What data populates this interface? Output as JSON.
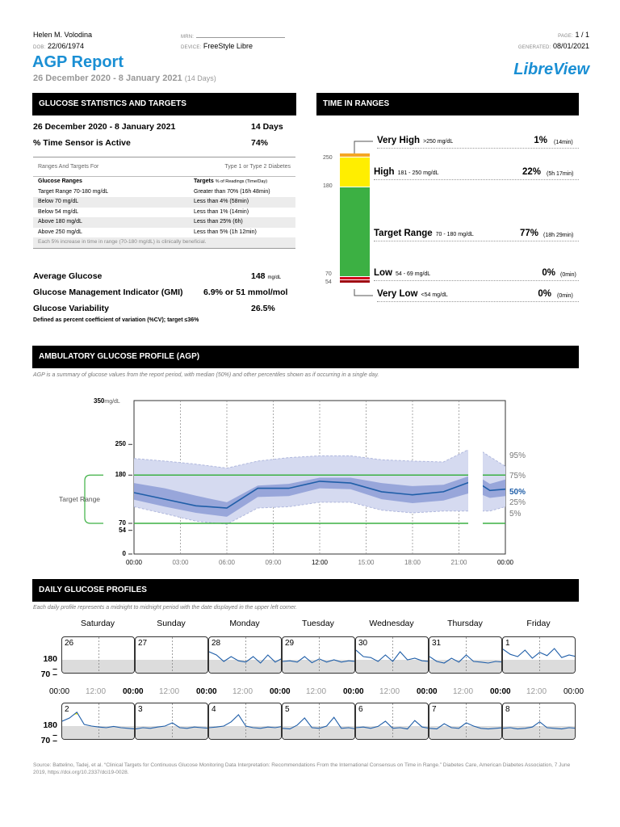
{
  "patient": {
    "name": "Helen M. Volodina",
    "dob_label": "DOB:",
    "dob": "22/06/1974",
    "mrn_label": "MRN:",
    "device_label": "DEVICE:",
    "device": "FreeStyle Libre",
    "page_label": "PAGE:",
    "page": "1 / 1",
    "generated_label": "GENERATED:",
    "generated": "08/01/2021"
  },
  "report": {
    "title": "AGP Report",
    "date_range": "26 December 2020 - 8 January 2021",
    "days": "(14 Days)",
    "brand": "LibreView"
  },
  "stats": {
    "header": "GLUCOSE STATISTICS AND TARGETS",
    "range_label": "26 December 2020 - 8 January 2021",
    "range_value": "14 Days",
    "active_label": "% Time Sensor is Active",
    "active_value": "74%",
    "targets_for_label": "Ranges And Targets For",
    "targets_for_value": "Type 1 or Type 2 Diabetes",
    "col1_header": "Glucose Ranges",
    "col2_header": "Targets",
    "col2_sub": "% of Readings (Time/Day)",
    "rows": [
      {
        "range": "Target Range 70-180 mg/dL",
        "target": "Greater than 70% (16h 48min)"
      },
      {
        "range": "Below 70 mg/dL",
        "target": "Less than 4% (58min)"
      },
      {
        "range": "Below 54 mg/dL",
        "target": "Less than 1% (14min)"
      },
      {
        "range": "Above 180 mg/dL",
        "target": "Less than 25% (6h)"
      },
      {
        "range": "Above 250 mg/dL",
        "target": "Less than 5% (1h 12min)"
      }
    ],
    "note": "Each 5% increase in time in range (70-180 mg/dL) is clinically beneficial.",
    "avg_label": "Average Glucose",
    "avg_value": "148",
    "avg_unit": "mg/dL",
    "gmi_label": "Glucose Management Indicator (GMI)",
    "gmi_value": "6.9% or 51 mmol/mol",
    "var_label": "Glucose Variability",
    "var_value": "26.5%",
    "var_def": "Defined as percent coefficient of variation (%CV); target ≤36%"
  },
  "tir": {
    "header": "TIME IN RANGES",
    "axis_ticks": [
      "250",
      "180",
      "70",
      "54"
    ],
    "bar_colors": {
      "very_high": "#f5a623",
      "high": "#ffee00",
      "target": "#3cb043",
      "low": "#d0021b",
      "very_low": "#8b0000"
    },
    "levels": [
      {
        "name": "Very High",
        "range": ">250 mg/dL",
        "pct": "1%",
        "time": "(14min)",
        "value": 1
      },
      {
        "name": "High",
        "range": "181 - 250 mg/dL",
        "pct": "22%",
        "time": "(5h 17min)",
        "value": 22
      },
      {
        "name": "Target Range",
        "range": "70 - 180 mg/dL",
        "pct": "77%",
        "time": "(18h 29min)",
        "value": 77
      },
      {
        "name": "Low",
        "range": "54 - 69 mg/dL",
        "pct": "0%",
        "time": "(0min)",
        "value": 0
      },
      {
        "name": "Very Low",
        "range": "<54 mg/dL",
        "pct": "0%",
        "time": "(0min)",
        "value": 0
      }
    ]
  },
  "agp": {
    "header": "AMBULATORY GLUCOSE PROFILE (AGP)",
    "desc": "AGP is a summary of glucose values from the report period, with median (50%) and other percentiles shown as if occurring in a single day.",
    "y_top_label": "350",
    "y_top_unit": "mg/dL",
    "y_ticks": [
      "250",
      "180",
      "70",
      "54",
      "0"
    ],
    "target_label": "Target Range",
    "x_ticks": [
      "00:00",
      "03:00",
      "06:00",
      "09:00",
      "12:00",
      "15:00",
      "18:00",
      "21:00",
      "00:00"
    ],
    "percentile_labels": [
      "95%",
      "75%",
      "50%",
      "25%",
      "5%"
    ]
  },
  "chart_data": {
    "type": "area",
    "x_unit": "hour of day",
    "y_unit": "mg/dL",
    "ylim": [
      0,
      350
    ],
    "target_range": [
      70,
      180
    ],
    "x": [
      0,
      2,
      4,
      6,
      8,
      10,
      12,
      14,
      16,
      18,
      20,
      22,
      23,
      24
    ],
    "series": [
      {
        "name": "95%",
        "values": [
          218,
          212,
          205,
          196,
          212,
          220,
          224,
          224,
          215,
          212,
          210,
          245,
          222,
          200
        ]
      },
      {
        "name": "75%",
        "values": [
          162,
          150,
          133,
          118,
          156,
          160,
          174,
          174,
          162,
          155,
          158,
          182,
          160,
          170
        ]
      },
      {
        "name": "50%",
        "values": [
          140,
          125,
          110,
          105,
          150,
          150,
          166,
          162,
          142,
          135,
          142,
          168,
          145,
          148
        ]
      },
      {
        "name": "25%",
        "values": [
          124,
          108,
          94,
          85,
          130,
          132,
          150,
          148,
          125,
          116,
          122,
          142,
          128,
          132
        ]
      },
      {
        "name": "5%",
        "values": [
          108,
          92,
          75,
          68,
          105,
          108,
          118,
          118,
          100,
          94,
          98,
          98,
          98,
          108
        ]
      }
    ]
  },
  "daily": {
    "header": "DAILY GLUCOSE PROFILES",
    "desc": "Each daily profile represents a midnight to midnight period with the date displayed in the upper left corner.",
    "weekdays": [
      "Saturday",
      "Sunday",
      "Monday",
      "Tuesday",
      "Wednesday",
      "Thursday",
      "Friday"
    ],
    "y_ticks": [
      "180",
      "70"
    ],
    "time_labels": [
      "00:00",
      "12:00"
    ],
    "week1_dates": [
      "26",
      "27",
      "28",
      "29",
      "30",
      "31",
      "1"
    ],
    "week2_dates": [
      "2",
      "3",
      "4",
      "5",
      "6",
      "7",
      "8"
    ]
  },
  "footer": {
    "source": "Source: Battelino, Tadej, et al. “Clinical Targets for Continuous Glucose Monitoring Data Interpretation: Recommendations From the International Consensus on Time in Range.” Diabetes Care, American Diabetes Association, 7 June 2019, https://doi.org/10.2337/dci19-0028."
  }
}
